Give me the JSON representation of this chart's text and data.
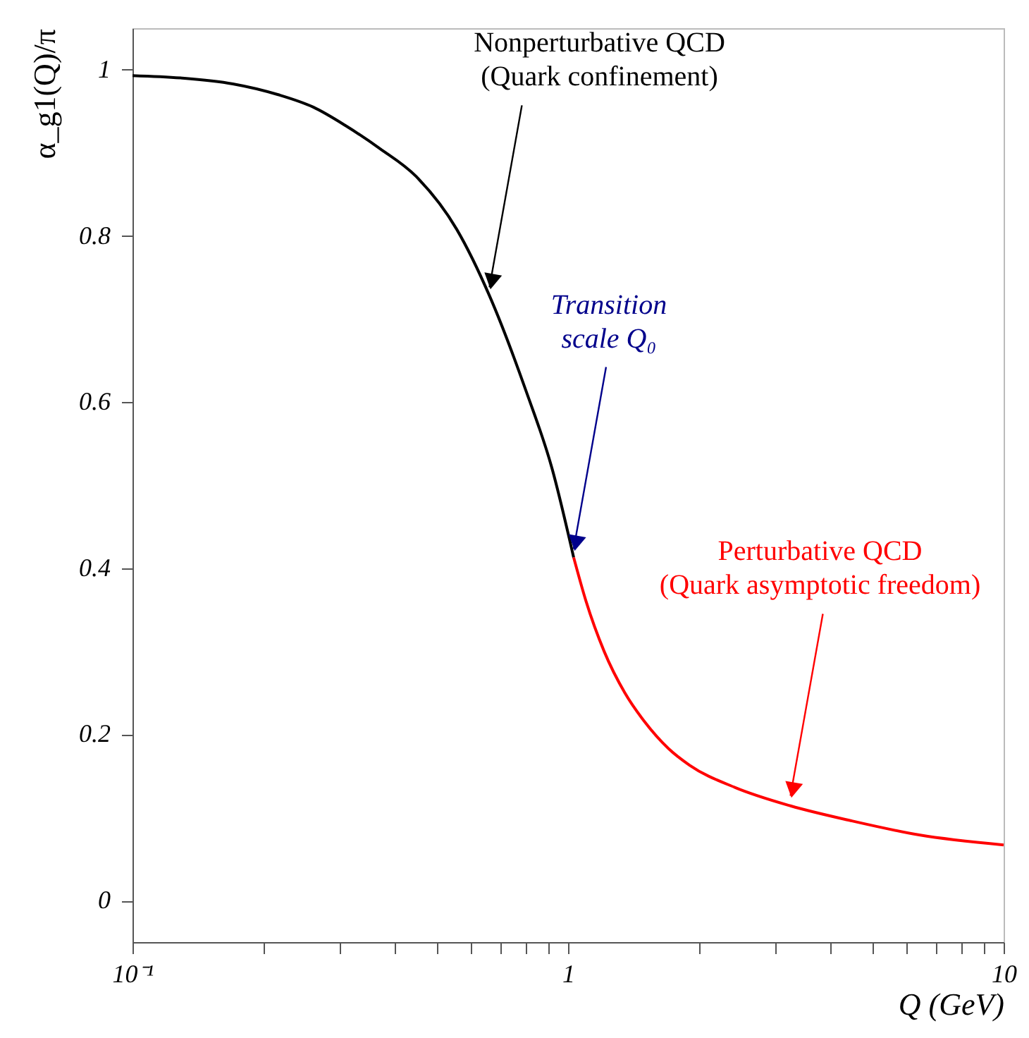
{
  "chart_data": {
    "type": "line",
    "xlabel": "Q (GeV)",
    "ylabel": "α_g1(Q)/π",
    "log": "x",
    "grid": false,
    "marker": "none",
    "line_style": "solid",
    "xlim": [
      0.1,
      10
    ],
    "ylim": [
      -0.05,
      1.05
    ],
    "xticks": [
      {
        "value": 0.1,
        "label": "10⁻¹"
      },
      {
        "value": 0.2,
        "label": null
      },
      {
        "value": 0.3,
        "label": null
      },
      {
        "value": 0.4,
        "label": null
      },
      {
        "value": 0.5,
        "label": null
      },
      {
        "value": 0.6,
        "label": null
      },
      {
        "value": 0.7,
        "label": null
      },
      {
        "value": 0.8,
        "label": null
      },
      {
        "value": 0.9,
        "label": null
      },
      1,
      {
        "value": 2,
        "label": null
      },
      {
        "value": 3,
        "label": null
      },
      {
        "value": 4,
        "label": null
      },
      {
        "value": 5,
        "label": null
      },
      {
        "value": 6,
        "label": null
      },
      {
        "value": 7,
        "label": null
      },
      {
        "value": 8,
        "label": null
      },
      {
        "value": 9,
        "label": null
      },
      10
    ],
    "yticks": [
      0,
      0.2,
      0.4,
      0.6,
      0.8,
      1
    ],
    "series": [
      {
        "color": "#000000",
        "x": [
          0.1,
          0.13,
          0.17,
          0.216,
          0.26,
          0.31,
          0.37,
          0.447,
          0.555,
          0.66,
          0.8,
          0.92,
          1.03
        ],
        "values": [
          0.993,
          0.99,
          0.983,
          0.97,
          0.955,
          0.932,
          0.905,
          0.872,
          0.808,
          0.728,
          0.614,
          0.519,
          0.413
        ]
      },
      {
        "color": "#ff0000",
        "x": [
          1.03,
          1.1,
          1.21,
          1.35,
          1.5,
          1.7,
          1.9,
          2.42,
          3.24,
          4.47,
          6.4,
          10
        ],
        "values": [
          0.413,
          0.36,
          0.3,
          0.25,
          0.215,
          0.183,
          0.163,
          0.136,
          0.114,
          0.096,
          0.079,
          0.067
        ]
      }
    ],
    "annotations": [
      {
        "text": "Nonperturbative QCD\n(Quark confinement)",
        "x": 0.66,
        "y": 0.728
      },
      {
        "text": "Transition\nscale Q₀",
        "x": 1.03,
        "y": 0.413
      },
      {
        "text": "Perturbative QCD\n(Quark asymptotic freedom)",
        "x": 3.24,
        "y": 0.116
      }
    ]
  }
}
